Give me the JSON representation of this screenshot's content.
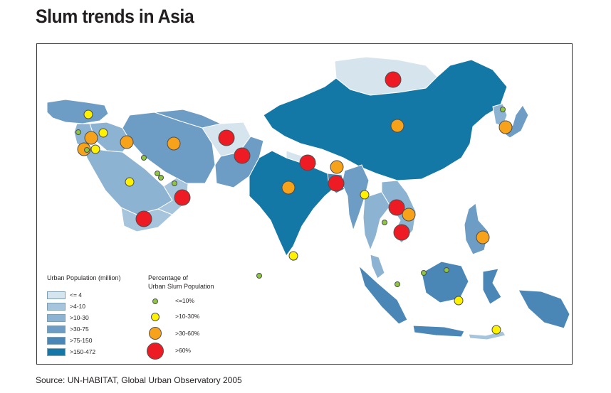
{
  "title": "Slum trends in Asia",
  "source": "Source: UN-HABITAT, Global Urban Observatory 2005",
  "legend_population": {
    "title": "Urban Population (million)",
    "items": [
      {
        "label": "<= 4",
        "color": "#d6e4ee"
      },
      {
        "label": ">4-10",
        "color": "#a6c4dc"
      },
      {
        "label": ">10-30",
        "color": "#8cb3d2"
      },
      {
        "label": ">30-75",
        "color": "#6d9cc4"
      },
      {
        "label": ">75-150",
        "color": "#4a87b7"
      },
      {
        "label": ">150-472",
        "color": "#1378a6"
      }
    ]
  },
  "legend_slum": {
    "title_line1": "Percentage of",
    "title_line2": "Urban Slum Population",
    "items": [
      {
        "label": "<=10%",
        "color": "#8dc63f"
      },
      {
        "label": ">10-30%",
        "color": "#fff200"
      },
      {
        "label": ">30-60%",
        "color": "#f7a21b"
      },
      {
        "label": ">60%",
        "color": "#ed1c24"
      }
    ]
  },
  "colors": {
    "outline": "#ffffff",
    "marker_stroke": "#4d4d4d"
  }
}
